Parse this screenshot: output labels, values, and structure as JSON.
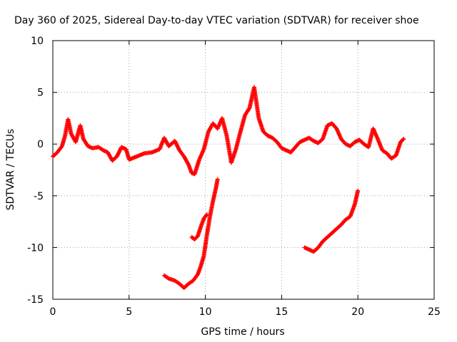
{
  "chart_data": {
    "type": "scatter",
    "title": "Day 360 of 2025, Sidereal Day-to-day VTEC variation (SDTVAR) for receiver shoe",
    "xlabel": "GPS time / hours",
    "ylabel": "SDTVAR / TECUs",
    "xlim": [
      0,
      25
    ],
    "ylim": [
      -15,
      10
    ],
    "xticks": [
      0,
      5,
      10,
      15,
      20,
      25
    ],
    "yticks": [
      -15,
      -10,
      -5,
      0,
      5,
      10
    ],
    "grid": true,
    "legend": "none",
    "marker": "+",
    "color": "#ff0000",
    "series": [
      {
        "name": "sdtvar-main",
        "x": [
          0.0,
          0.3,
          0.6,
          0.8,
          1.0,
          1.2,
          1.5,
          1.8,
          2.0,
          2.3,
          2.6,
          3.0,
          3.3,
          3.6,
          3.9,
          4.2,
          4.5,
          4.8,
          5.0,
          5.5,
          6.0,
          6.5,
          7.0,
          7.3,
          7.6,
          8.0,
          8.3,
          8.6,
          8.9,
          9.1,
          9.3,
          9.6,
          9.9,
          10.2,
          10.5,
          10.8,
          11.1,
          11.4,
          11.7,
          12.0,
          12.3,
          12.6,
          12.9,
          13.2,
          13.5,
          13.8,
          14.1,
          14.4,
          14.7,
          15.0,
          15.3,
          15.6,
          15.9,
          16.2,
          16.5,
          16.8,
          17.1,
          17.4,
          17.7,
          18.0,
          18.3,
          18.6,
          18.9,
          19.2,
          19.5,
          19.8,
          20.1,
          20.4,
          20.7,
          21.0,
          21.3,
          21.6,
          21.9,
          22.2,
          22.5,
          22.8,
          23.0
        ],
        "y": [
          -1.2,
          -0.8,
          -0.2,
          0.8,
          2.4,
          1.0,
          0.2,
          1.8,
          0.5,
          -0.2,
          -0.4,
          -0.3,
          -0.6,
          -0.8,
          -1.6,
          -1.2,
          -0.3,
          -0.5,
          -1.5,
          -1.2,
          -0.9,
          -0.8,
          -0.5,
          0.6,
          -0.2,
          0.3,
          -0.6,
          -1.2,
          -2.0,
          -2.8,
          -2.9,
          -1.5,
          -0.5,
          1.2,
          2.0,
          1.5,
          2.5,
          0.8,
          -1.8,
          -0.5,
          1.2,
          2.8,
          3.5,
          5.5,
          2.5,
          1.2,
          0.8,
          0.6,
          0.2,
          -0.4,
          -0.6,
          -0.8,
          -0.3,
          0.2,
          0.4,
          0.6,
          0.3,
          0.1,
          0.5,
          1.8,
          2.0,
          1.5,
          0.5,
          0.0,
          -0.2,
          0.2,
          0.4,
          0.0,
          -0.3,
          1.5,
          0.5,
          -0.6,
          -0.9,
          -1.4,
          -1.1,
          0.2,
          0.5
        ]
      },
      {
        "name": "sdtvar-arc-1",
        "x": [
          7.3,
          7.6,
          8.0,
          8.3,
          8.6,
          8.9,
          9.2,
          9.5,
          9.7,
          9.9,
          10.1,
          10.3,
          10.5,
          10.7,
          10.8
        ],
        "y": [
          -12.7,
          -13.0,
          -13.2,
          -13.5,
          -13.9,
          -13.5,
          -13.2,
          -12.6,
          -11.8,
          -10.8,
          -8.8,
          -7.0,
          -5.5,
          -4.2,
          -3.4
        ]
      },
      {
        "name": "sdtvar-arc-2",
        "x": [
          9.1,
          9.3,
          9.5,
          9.7,
          9.9,
          10.1
        ],
        "y": [
          -9.0,
          -9.2,
          -8.9,
          -8.0,
          -7.2,
          -6.8
        ]
      },
      {
        "name": "sdtvar-arc-3",
        "x": [
          16.5,
          16.8,
          17.1,
          17.4,
          17.7,
          18.0,
          18.3,
          18.6,
          18.9,
          19.2,
          19.5,
          19.8,
          20.0
        ],
        "y": [
          -10.0,
          -10.2,
          -10.4,
          -10.0,
          -9.4,
          -9.0,
          -8.6,
          -8.2,
          -7.8,
          -7.3,
          -7.0,
          -5.8,
          -4.5
        ]
      }
    ]
  }
}
